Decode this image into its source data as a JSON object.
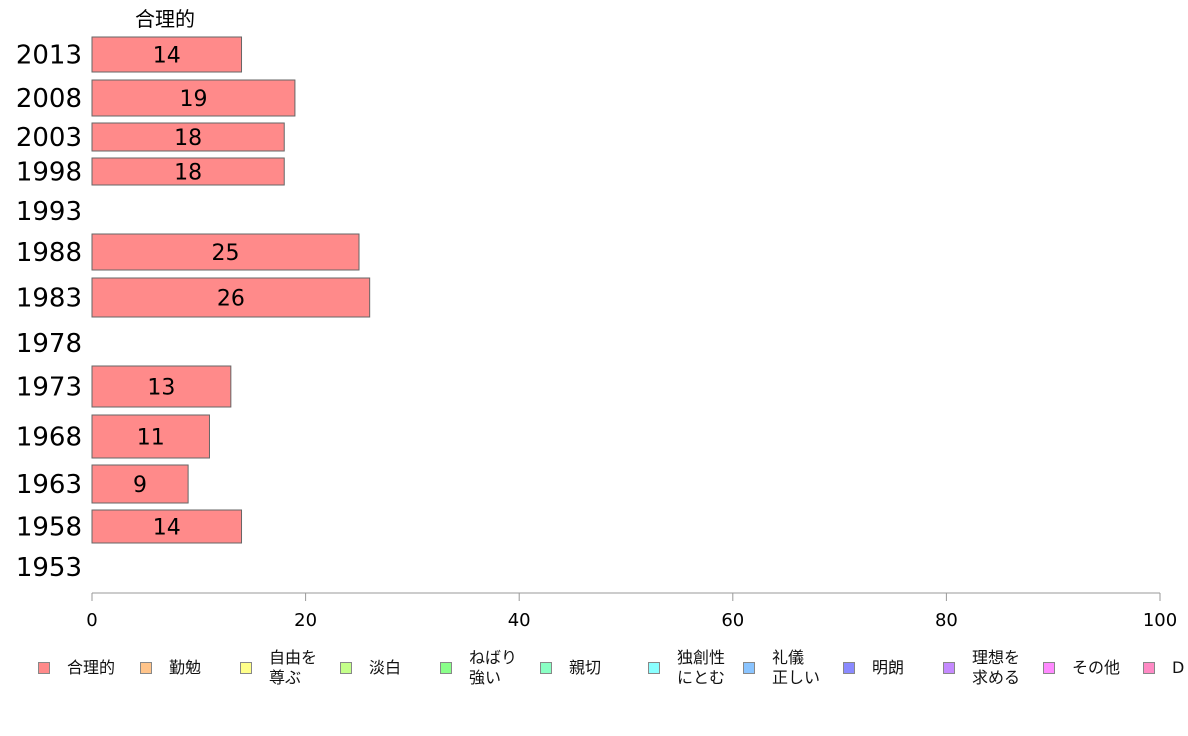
{
  "chart_data": {
    "type": "bar",
    "orientation": "horizontal",
    "series_label": "合理的",
    "categories": [
      "2013",
      "2008",
      "2003",
      "1998",
      "1993",
      "1988",
      "1983",
      "1978",
      "1973",
      "1968",
      "1963",
      "1958",
      "1953"
    ],
    "values": [
      14,
      19,
      18,
      18,
      null,
      25,
      26,
      null,
      13,
      11,
      9,
      14,
      null
    ],
    "data_labels": [
      "14",
      "19",
      "18",
      "18",
      "",
      "25",
      "26",
      "",
      "13",
      "11",
      "9",
      "14",
      ""
    ],
    "xlim": [
      0,
      100
    ],
    "xticks": [
      "0",
      "20",
      "40",
      "60",
      "80",
      "100"
    ],
    "bar_color": "#ff8a8a",
    "legend_position": "bottom",
    "legend": [
      {
        "label": "合理的",
        "color": "#ff8a8a"
      },
      {
        "label": "勤勉",
        "color": "#ffc48a"
      },
      {
        "label": "自由を\n尊ぶ",
        "color": "#ffff8a"
      },
      {
        "label": "淡白",
        "color": "#c4ff8a"
      },
      {
        "label": "ねばり\n強い",
        "color": "#8aff8a"
      },
      {
        "label": "親切",
        "color": "#8affc4"
      },
      {
        "label": "独創性\nにとむ",
        "color": "#8affff"
      },
      {
        "label": "礼儀\n正しい",
        "color": "#8ac4ff"
      },
      {
        "label": "明朗",
        "color": "#8a8aff"
      },
      {
        "label": "理想を\n求める",
        "color": "#c48aff"
      },
      {
        "label": "その他",
        "color": "#ff8aff"
      },
      {
        "label": "D",
        "color": "#ff8ac4"
      }
    ]
  }
}
